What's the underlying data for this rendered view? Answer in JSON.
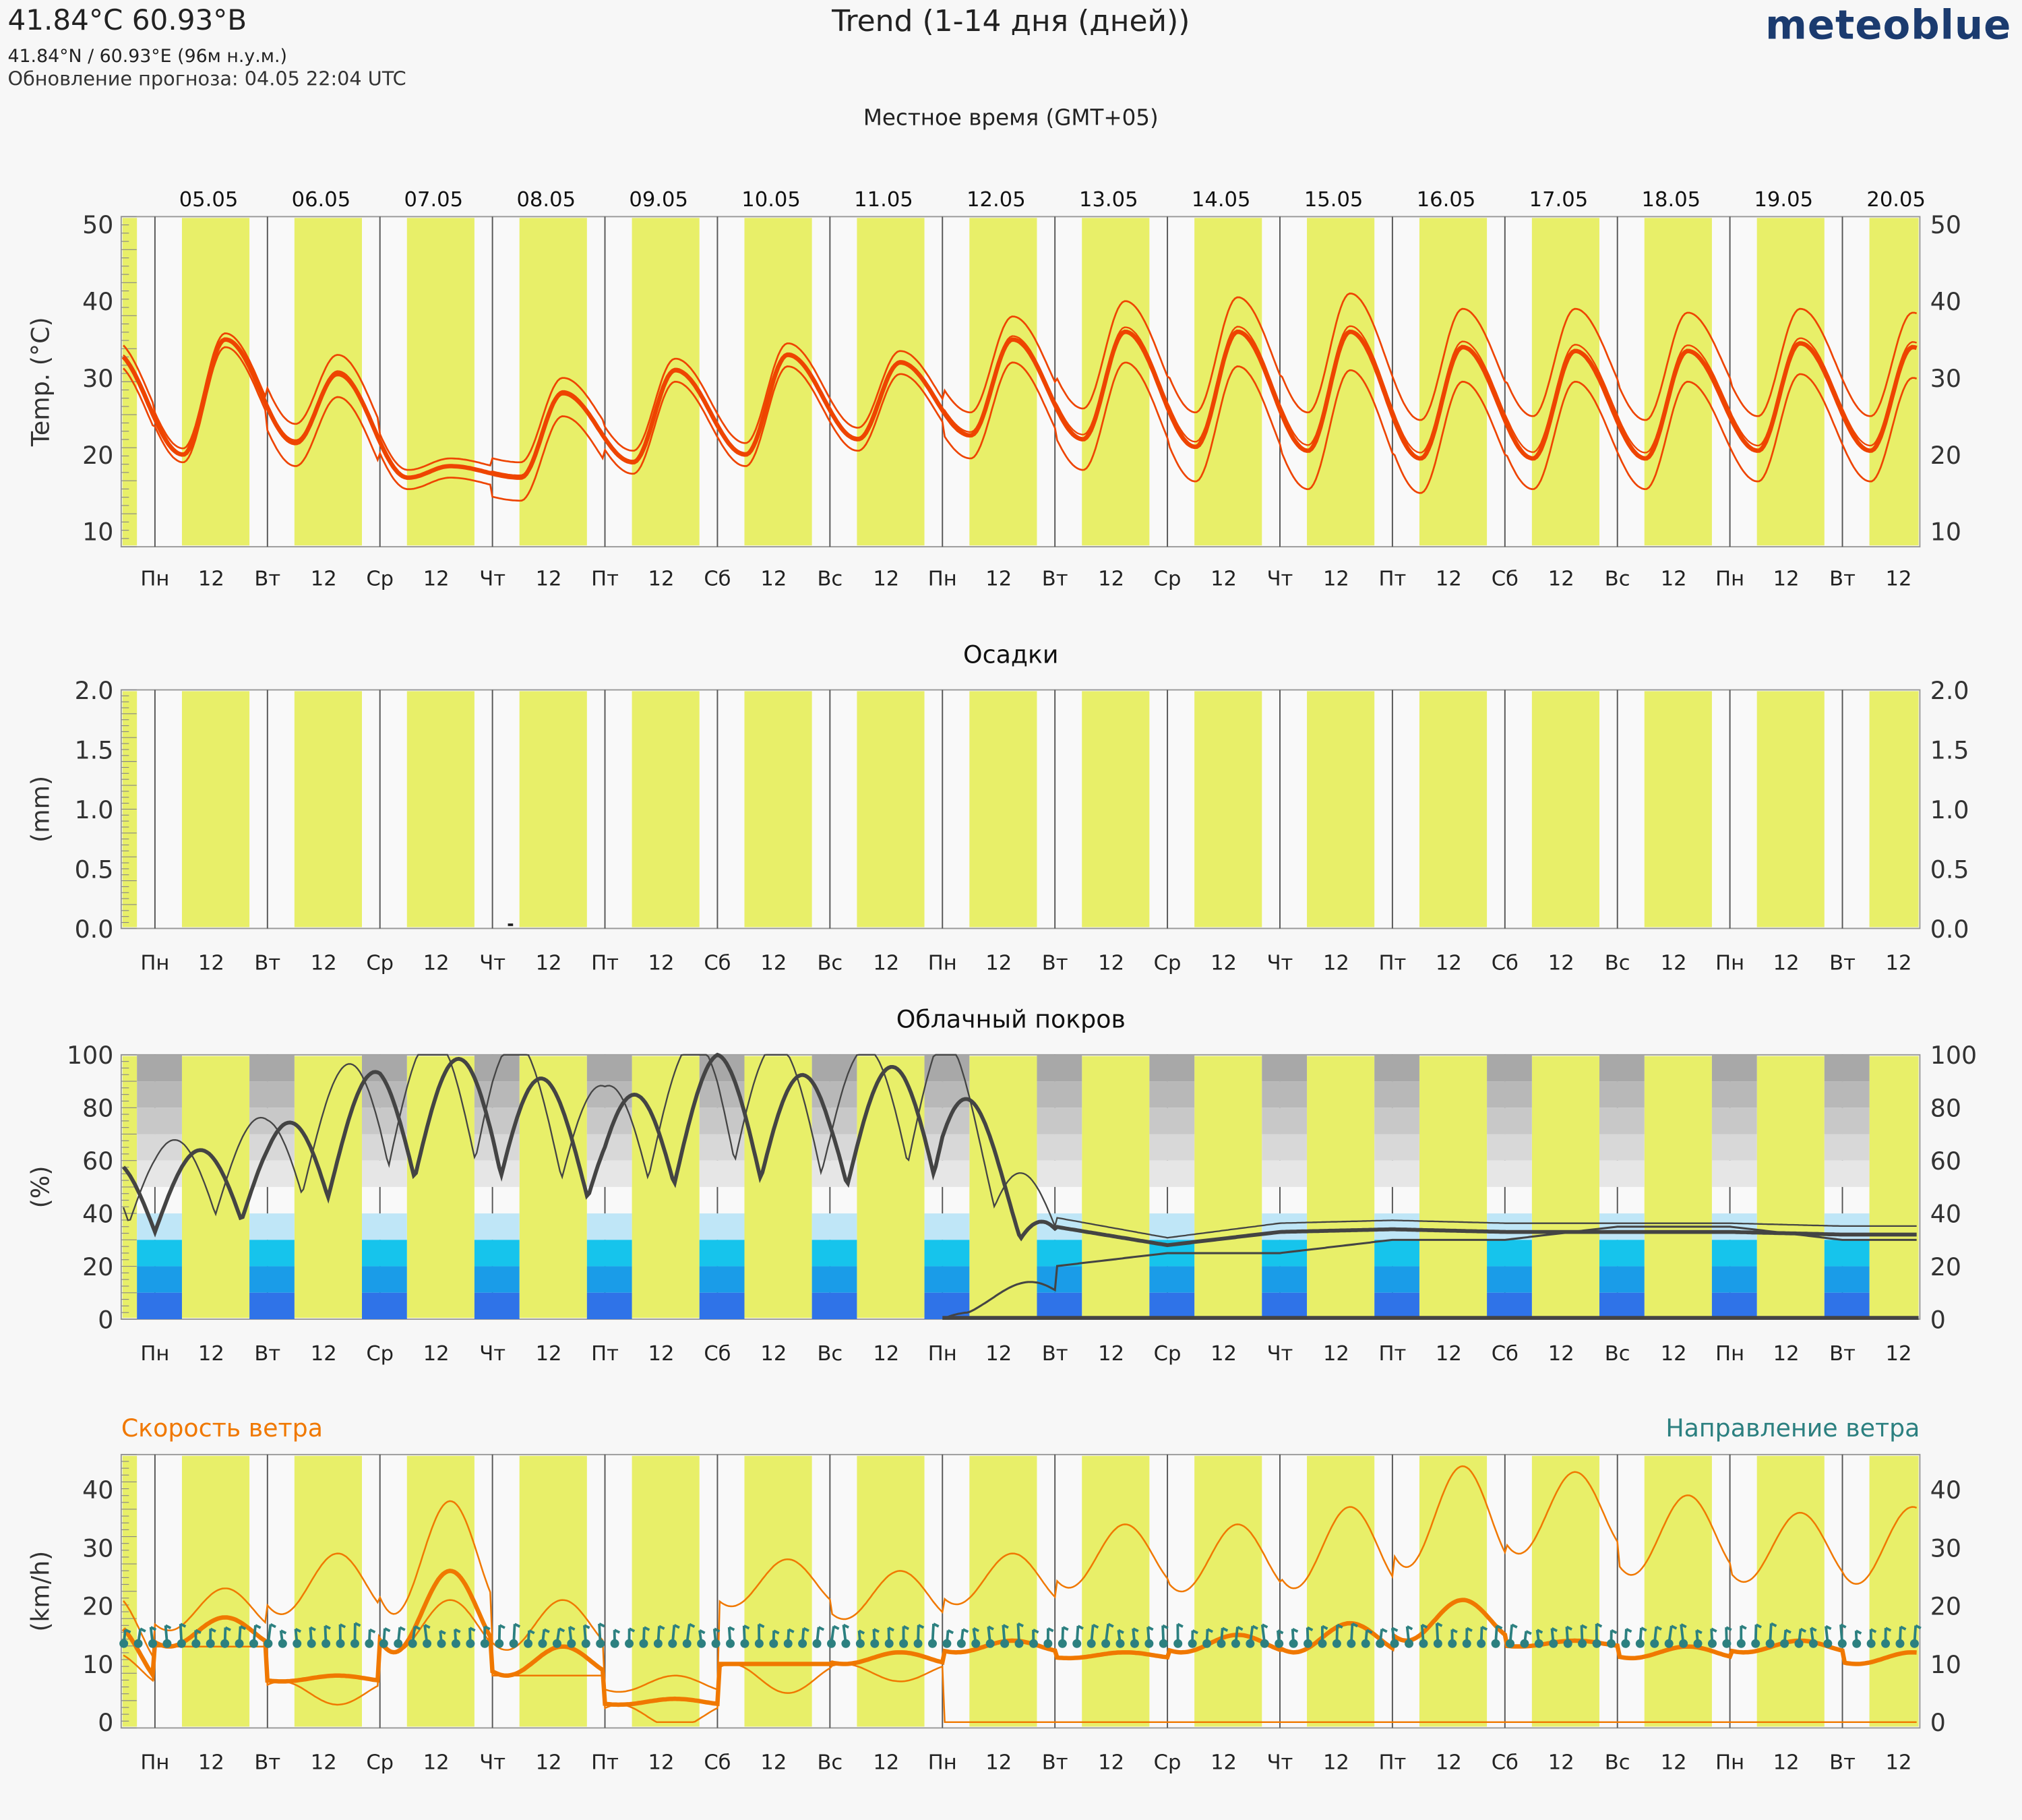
{
  "header": {
    "coords_title": "41.84°C 60.93°В",
    "coords_sub": "41.84°N / 60.93°E (96м н.у.м.)",
    "update": "Обновление прогноза: 04.05 22:04 UTC",
    "title": "Trend (1-14 дня (дней))",
    "brand": "meteoblue",
    "local_time": "Местное время (GMT+05)"
  },
  "dates": [
    "05.05",
    "06.05",
    "07.05",
    "08.05",
    "09.05",
    "10.05",
    "11.05",
    "12.05",
    "13.05",
    "14.05",
    "15.05",
    "16.05",
    "17.05",
    "18.05",
    "19.05",
    "20.05"
  ],
  "day_abbrevs": [
    "Пн",
    "Вт",
    "Ср",
    "Чт",
    "Пт",
    "Сб",
    "Вс",
    "Пн",
    "Вт",
    "Ср",
    "Чт",
    "Пт",
    "Сб",
    "Вс",
    "Пн",
    "Вт"
  ],
  "noon_label": "12",
  "colors": {
    "day_band": "#e8ef69",
    "temperature": "#ee4400",
    "wind_speed": "#f07800",
    "wind_direction": "#2c8080",
    "cloud_line": "#444444",
    "precip_title": "#222222"
  },
  "chart_data": [
    {
      "type": "line",
      "title": "",
      "ylabel": "Temp. (°C)",
      "ylim": [
        8,
        51
      ],
      "yticks": [
        10,
        20,
        30,
        40,
        50
      ],
      "daily_max": [
        33.5,
        35,
        30.5,
        18.5,
        28,
        31,
        33,
        32,
        35,
        36,
        36,
        36,
        34,
        33.5,
        33.5,
        34.5,
        34
      ],
      "daily_min": [
        23,
        20,
        21.5,
        17,
        17,
        19,
        20,
        22,
        22.5,
        22,
        21,
        20.5,
        19.5,
        19.5,
        19.5,
        20.5,
        20.5
      ],
      "spread_upper": [
        1.5,
        0.8,
        2.5,
        1,
        2,
        1.5,
        1.5,
        1.5,
        3,
        4,
        4.5,
        5,
        5,
        5.5,
        5,
        4.5,
        4.5
      ],
      "spread_lower": [
        1.5,
        1,
        3,
        1.5,
        3,
        1.5,
        1.5,
        1.5,
        3,
        4,
        4.5,
        5,
        4.5,
        4,
        4,
        4,
        4
      ]
    },
    {
      "type": "bar",
      "title": "Осадки",
      "ylabel": "(mm)",
      "ylim": [
        0,
        2.0
      ],
      "yticks": [
        0.0,
        0.5,
        1.0,
        1.5,
        2.0
      ],
      "values_mm_daily": [
        0,
        0,
        0,
        0.02,
        0,
        0,
        0,
        0,
        0,
        0,
        0,
        0,
        0,
        0,
        0,
        0
      ]
    },
    {
      "type": "line",
      "title": "Облачный покров",
      "ylabel": "(%)",
      "ylim": [
        0,
        100
      ],
      "yticks": [
        0,
        20,
        40,
        60,
        80,
        100
      ],
      "nights_high_mid": [
        [
          0,
          60
        ],
        [
          10,
          70
        ],
        [
          0,
          95
        ],
        [
          0,
          100
        ],
        [
          0,
          80
        ],
        [
          30,
          100
        ],
        [
          10,
          90
        ],
        [
          0,
          100
        ],
        [
          20,
          35
        ],
        [
          25,
          28
        ],
        [
          25,
          33
        ],
        [
          30,
          34
        ],
        [
          30,
          33
        ],
        [
          35,
          33
        ],
        [
          35,
          33
        ],
        [
          30,
          32
        ]
      ]
    },
    {
      "type": "line",
      "title": "",
      "series_titles": [
        "Скорость ветра",
        "Направление ветра"
      ],
      "ylabel": "(km/h)",
      "ylim": [
        -1,
        46
      ],
      "yticks": [
        0,
        10,
        20,
        30,
        40
      ],
      "day_wind": [
        17,
        18,
        8,
        26,
        13,
        4,
        10,
        12,
        14,
        12,
        15,
        17,
        21,
        14,
        13,
        14,
        12
      ],
      "night_wind": [
        6,
        13,
        7,
        12,
        8,
        3,
        10,
        10,
        12,
        11,
        12,
        12,
        14,
        13,
        11,
        12,
        10
      ],
      "day_max_env": [
        22,
        23,
        29,
        38,
        21,
        8,
        28,
        26,
        29,
        34,
        34,
        37,
        44,
        43,
        39,
        36,
        37
      ]
    }
  ]
}
